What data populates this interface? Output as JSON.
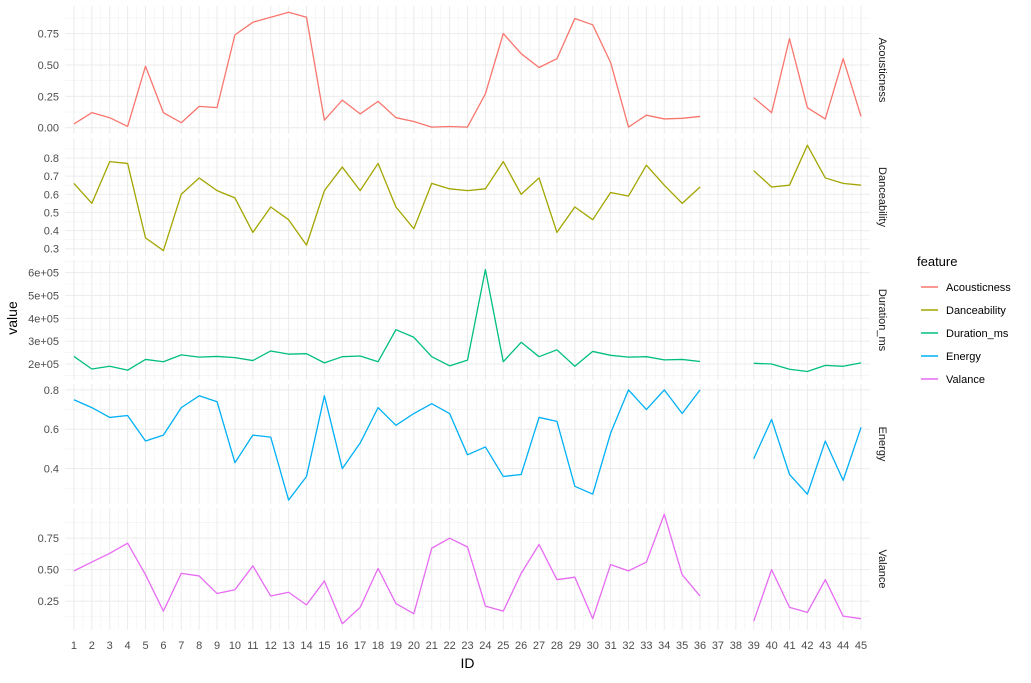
{
  "chart_data": {
    "type": "line",
    "facet": "rows",
    "xlabel": "ID",
    "ylabel": "value",
    "legend_title": "feature",
    "legend_position": "right",
    "grid": true,
    "x_ticks": [
      1,
      2,
      3,
      4,
      5,
      6,
      7,
      8,
      9,
      10,
      11,
      12,
      13,
      14,
      15,
      16,
      17,
      18,
      19,
      20,
      21,
      22,
      23,
      24,
      25,
      26,
      27,
      28,
      29,
      30,
      31,
      32,
      33,
      34,
      35,
      36,
      37,
      38,
      39,
      40,
      41,
      42,
      43,
      44,
      45
    ],
    "x_tick_labels": [
      "1",
      "2",
      "3",
      "4",
      "5",
      "6",
      "7",
      "8",
      "9",
      "10",
      "11",
      "12",
      "13",
      "14",
      "15",
      "16",
      "17",
      "18",
      "19",
      "20",
      "21",
      "22",
      "23",
      "24",
      "25",
      "26",
      "27",
      "28",
      "29",
      "30",
      "31",
      "32",
      "33",
      "34",
      "35",
      "36",
      "37",
      "38",
      "39",
      "40",
      "41",
      "42",
      "43",
      "44",
      "45"
    ],
    "xlim": [
      0.5,
      45.5
    ],
    "x": [
      1,
      2,
      3,
      4,
      5,
      6,
      7,
      8,
      9,
      10,
      11,
      12,
      13,
      14,
      15,
      16,
      17,
      18,
      19,
      20,
      21,
      22,
      23,
      24,
      25,
      26,
      27,
      28,
      29,
      30,
      31,
      32,
      33,
      34,
      35,
      36,
      37,
      38,
      39,
      40,
      41,
      42,
      43,
      44,
      45
    ],
    "series": [
      {
        "name": "Acousticness",
        "color": "#F8766D",
        "ylim": [
          -0.05,
          0.97
        ],
        "y_ticks": [
          0,
          0.25,
          0.5,
          0.75
        ],
        "y_tick_labels": [
          "0.00",
          "0.25",
          "0.50",
          "0.75"
        ],
        "values": [
          0.03,
          0.12,
          0.08,
          0.01,
          0.49,
          0.12,
          0.04,
          0.17,
          0.16,
          0.74,
          0.84,
          0.88,
          0.92,
          0.88,
          0.06,
          0.22,
          0.11,
          0.21,
          0.08,
          0.05,
          0.005,
          0.01,
          0.005,
          0.27,
          0.75,
          0.59,
          0.48,
          0.55,
          0.87,
          0.82,
          0.52,
          0.005,
          0.1,
          0.07,
          0.075,
          0.09,
          null,
          null,
          0.24,
          0.12,
          0.71,
          0.16,
          0.07,
          0.55,
          0.09
        ]
      },
      {
        "name": "Danceability",
        "color": "#A3A500",
        "ylim": [
          0.26,
          0.91
        ],
        "y_ticks": [
          0.3,
          0.4,
          0.5,
          0.6,
          0.7,
          0.8
        ],
        "y_tick_labels": [
          "0.3",
          "0.4",
          "0.5",
          "0.6",
          "0.7",
          "0.8"
        ],
        "values": [
          0.66,
          0.55,
          0.78,
          0.77,
          0.36,
          0.29,
          0.6,
          0.69,
          0.62,
          0.58,
          0.39,
          0.53,
          0.46,
          0.32,
          0.62,
          0.75,
          0.62,
          0.77,
          0.53,
          0.41,
          0.66,
          0.63,
          0.62,
          0.63,
          0.78,
          0.6,
          0.69,
          0.39,
          0.53,
          0.46,
          0.61,
          0.59,
          0.76,
          0.65,
          0.55,
          0.64,
          null,
          null,
          0.73,
          0.64,
          0.65,
          0.87,
          0.69,
          0.66,
          0.65
        ]
      },
      {
        "name": "Duration_ms",
        "color": "#00BF7D",
        "ylim": [
          130000,
          655000
        ],
        "y_ticks": [
          200000,
          300000,
          400000,
          500000,
          600000
        ],
        "y_tick_labels": [
          "2e+05",
          "3e+05",
          "4e+05",
          "5e+05",
          "6e+05"
        ],
        "values": [
          233000,
          178000,
          190000,
          173000,
          220000,
          210000,
          240000,
          230000,
          233000,
          228000,
          215000,
          257000,
          243000,
          245000,
          205000,
          232000,
          235000,
          210000,
          350000,
          317000,
          232000,
          192000,
          217000,
          613000,
          210000,
          295000,
          232000,
          262000,
          190000,
          255000,
          238000,
          230000,
          232000,
          218000,
          220000,
          211000,
          null,
          null,
          203000,
          200000,
          177000,
          167000,
          194000,
          190000,
          205000
        ]
      },
      {
        "name": "Energy",
        "color": "#00B0F6",
        "ylim": [
          0.22,
          0.83
        ],
        "y_ticks": [
          0.4,
          0.6,
          0.8
        ],
        "y_tick_labels": [
          "0.4",
          "0.6",
          "0.8"
        ],
        "values": [
          0.75,
          0.71,
          0.66,
          0.67,
          0.54,
          0.57,
          0.71,
          0.77,
          0.74,
          0.43,
          0.57,
          0.56,
          0.24,
          0.36,
          0.77,
          0.4,
          0.53,
          0.71,
          0.62,
          0.68,
          0.73,
          0.68,
          0.47,
          0.51,
          0.36,
          0.37,
          0.66,
          0.64,
          0.31,
          0.27,
          0.58,
          0.8,
          0.7,
          0.8,
          0.68,
          0.8,
          null,
          null,
          0.45,
          0.65,
          0.37,
          0.27,
          0.54,
          0.34,
          0.61
        ]
      },
      {
        "name": "Valance",
        "color": "#E76BF3",
        "ylim": [
          0.02,
          0.99
        ],
        "y_ticks": [
          0.25,
          0.5,
          0.75
        ],
        "y_tick_labels": [
          "0.25",
          "0.50",
          "0.75"
        ],
        "values": [
          0.49,
          0.56,
          0.63,
          0.71,
          0.46,
          0.17,
          0.47,
          0.45,
          0.31,
          0.34,
          0.53,
          0.29,
          0.32,
          0.22,
          0.41,
          0.07,
          0.2,
          0.51,
          0.23,
          0.15,
          0.67,
          0.75,
          0.68,
          0.21,
          0.17,
          0.47,
          0.7,
          0.42,
          0.44,
          0.11,
          0.54,
          0.49,
          0.56,
          0.94,
          0.46,
          0.29,
          null,
          null,
          0.09,
          0.5,
          0.2,
          0.16,
          0.42,
          0.13,
          0.11
        ]
      }
    ]
  }
}
